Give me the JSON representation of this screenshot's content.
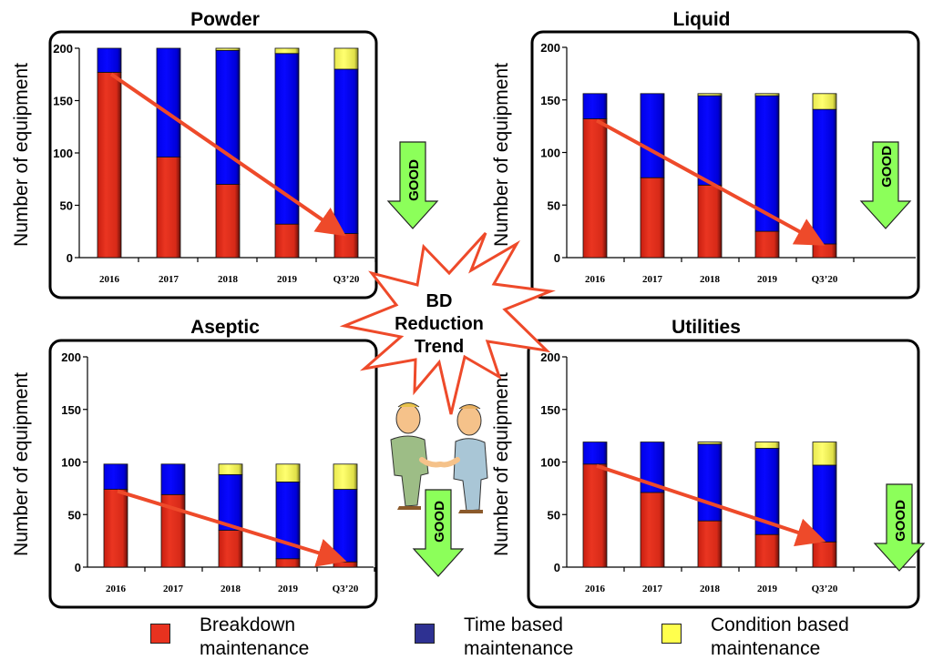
{
  "chart_data": [
    {
      "type": "bar",
      "stacked": true,
      "title": "Powder",
      "xlabel": "",
      "ylabel": "Number of equipment",
      "ylim": [
        0,
        200
      ],
      "yticks": [
        "0",
        "50",
        "100",
        "150",
        "200"
      ],
      "categories": [
        "2016",
        "2017",
        "2018",
        "2019",
        "Q3’20"
      ],
      "series": [
        {
          "name": "Breakdown maintenance",
          "values": [
            177,
            96,
            70,
            32,
            23
          ]
        },
        {
          "name": "Time based maintenance",
          "values": [
            23,
            104,
            128,
            163,
            157
          ]
        },
        {
          "name": "Condition based maintenance",
          "values": [
            0,
            0,
            2,
            5,
            20
          ]
        }
      ],
      "trend_arrow": {
        "from_category": "2016",
        "to_category": "Q3’20"
      },
      "badge": "GOOD"
    },
    {
      "type": "bar",
      "stacked": true,
      "title": "Liquid",
      "xlabel": "",
      "ylabel": "Number of equipment",
      "ylim": [
        0,
        200
      ],
      "yticks": [
        "0",
        "50",
        "100",
        "150",
        "200"
      ],
      "categories": [
        "2016",
        "2017",
        "2018",
        "2019",
        "Q3’20"
      ],
      "series": [
        {
          "name": "Breakdown maintenance",
          "values": [
            132,
            76,
            69,
            25,
            13
          ]
        },
        {
          "name": "Time based maintenance",
          "values": [
            24,
            80,
            85,
            129,
            128
          ]
        },
        {
          "name": "Condition based maintenance",
          "values": [
            0,
            0,
            2,
            2,
            15
          ]
        }
      ],
      "trend_arrow": {
        "from_category": "2016",
        "to_category": "Q3’20"
      },
      "badge": "GOOD"
    },
    {
      "type": "bar",
      "stacked": true,
      "title": "Aseptic",
      "xlabel": "",
      "ylabel": "Number of equipment",
      "ylim": [
        0,
        200
      ],
      "yticks": [
        "0",
        "50",
        "100",
        "150",
        "200"
      ],
      "categories": [
        "2016",
        "2017",
        "2018",
        "2019",
        "Q3’20"
      ],
      "series": [
        {
          "name": "Breakdown maintenance",
          "values": [
            74,
            69,
            35,
            8,
            5
          ]
        },
        {
          "name": "Time based maintenance",
          "values": [
            24,
            29,
            53,
            73,
            69
          ]
        },
        {
          "name": "Condition based maintenance",
          "values": [
            0,
            0,
            10,
            17,
            24
          ]
        }
      ],
      "trend_arrow": {
        "from_category": "2016",
        "to_category": "Q3’20"
      },
      "badge": "GOOD"
    },
    {
      "type": "bar",
      "stacked": true,
      "title": "Utilities",
      "xlabel": "",
      "ylabel": "Number of equipment",
      "ylim": [
        0,
        200
      ],
      "yticks": [
        "0",
        "50",
        "100",
        "150",
        "200"
      ],
      "categories": [
        "2016",
        "2017",
        "2018",
        "2019",
        "Q3’20"
      ],
      "series": [
        {
          "name": "Breakdown maintenance",
          "values": [
            98,
            71,
            44,
            31,
            24
          ]
        },
        {
          "name": "Time based maintenance",
          "values": [
            21,
            48,
            73,
            82,
            73
          ]
        },
        {
          "name": "Condition based maintenance",
          "values": [
            0,
            0,
            2,
            6,
            22
          ]
        }
      ],
      "trend_arrow": {
        "from_category": "2016",
        "to_category": "Q3’20"
      },
      "badge": "GOOD"
    }
  ],
  "center_callout": {
    "lines": [
      "BD",
      "Reduction",
      "Trend"
    ]
  },
  "legend": [
    {
      "line1": "Breakdown",
      "line2": "maintenance",
      "color": "#e8321f"
    },
    {
      "line1": "Time based",
      "line2": "maintenance",
      "color": "#2e3192"
    },
    {
      "line1": "Condition based",
      "line2": "maintenance",
      "color": "#ffff4d"
    }
  ],
  "colors": {
    "breakdown": "#e8321f",
    "time_based": "#0000f0",
    "condition_based": "#f2f260",
    "trend_arrow": "#ee4a2a",
    "good_arrow": "#8cff5a",
    "starburst": "#ee4a2a"
  }
}
